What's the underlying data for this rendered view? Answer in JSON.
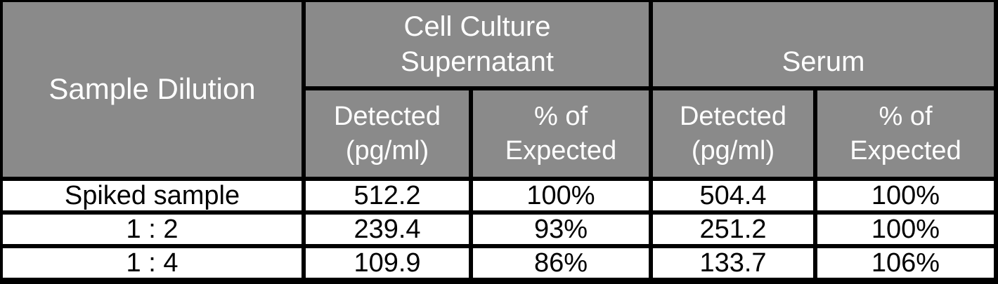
{
  "table": {
    "title_semantic": "Sample dilution linearity table",
    "corner_header": "Sample Dilution",
    "group_headers": {
      "cell_culture": "Cell Culture\nSupernatant",
      "serum": "Serum"
    },
    "sub_headers": {
      "cc_detected": "Detected\n(pg/ml)",
      "cc_percent": "% of\nExpected",
      "serum_detected": "Detected\n(pg/ml)",
      "serum_percent": "% of\nExpected"
    },
    "rows": [
      {
        "dilution": "Spiked sample",
        "values": [
          "512.2",
          "100%",
          "504.4",
          "100%"
        ]
      },
      {
        "dilution": "1 : 2",
        "values": [
          "239.4",
          "93%",
          "251.2",
          "100%"
        ]
      },
      {
        "dilution": "1 : 4",
        "values": [
          "109.9",
          "86%",
          "133.7",
          "106%"
        ]
      }
    ],
    "colors": {
      "header_background": "#8a8a8a",
      "header_text": "#ffffff",
      "border": "#000000",
      "row_background": "#ffffff",
      "row_text": "#000000"
    }
  }
}
